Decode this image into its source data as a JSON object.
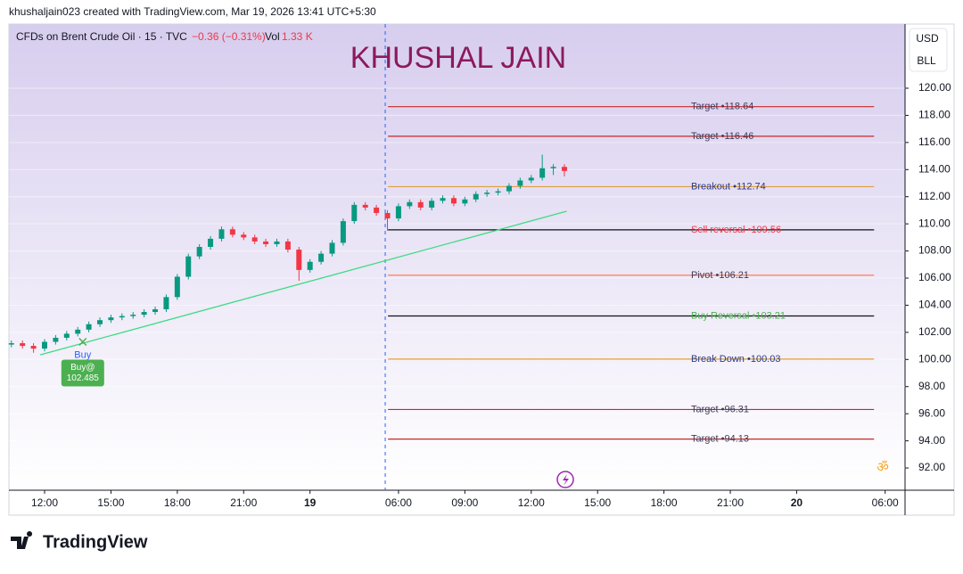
{
  "header": "khushaljain023 created with TradingView.com, Mar 19, 2026 13:41 UTC+5:30",
  "chart_data": {
    "type": "candlestick",
    "symbol": "CFDs on Brent Crude Oil · 15 · TVC",
    "change": "−0.36 (−0.31%)",
    "volume_label": "Vol",
    "volume": "1.33 K",
    "title": "KHUSHAL JAIN",
    "currency": "USD",
    "unit": "BLL",
    "up_color": "#089981",
    "down_color": "#f23645",
    "x": [
      -6,
      -4,
      -2,
      0,
      2,
      4,
      6,
      8,
      10,
      12,
      14,
      16,
      18,
      20,
      22,
      24,
      26,
      28,
      30,
      32,
      34,
      36,
      38,
      40,
      42,
      44,
      46,
      48,
      50,
      52,
      54,
      56,
      58,
      60,
      62,
      64,
      66,
      68,
      70,
      72,
      74,
      76,
      78,
      80,
      82,
      84,
      86,
      88,
      90,
      92,
      94
    ],
    "open": [
      101.1,
      101.2,
      101.0,
      100.8,
      101.3,
      101.6,
      101.9,
      102.2,
      102.6,
      102.9,
      103.1,
      103.2,
      103.3,
      103.5,
      103.7,
      104.6,
      106.1,
      107.6,
      108.3,
      108.9,
      109.6,
      109.2,
      109.0,
      108.7,
      108.5,
      108.7,
      108.1,
      106.6,
      107.2,
      107.8,
      108.6,
      110.2,
      111.4,
      111.2,
      110.8,
      110.4,
      111.3,
      111.6,
      111.2,
      111.7,
      111.9,
      111.5,
      111.8,
      112.2,
      112.3,
      112.4,
      112.8,
      113.2,
      113.4,
      114.1,
      114.2
    ],
    "high": [
      101.4,
      101.4,
      101.2,
      101.5,
      101.8,
      102.1,
      102.4,
      102.8,
      103.1,
      103.3,
      103.4,
      103.5,
      103.7,
      103.9,
      104.8,
      106.3,
      107.8,
      108.5,
      109.1,
      109.8,
      109.8,
      109.4,
      109.2,
      108.9,
      108.9,
      108.9,
      108.3,
      107.4,
      108.0,
      108.8,
      110.4,
      111.6,
      111.6,
      111.4,
      111.0,
      111.5,
      111.8,
      111.8,
      111.9,
      112.1,
      112.1,
      112.0,
      112.4,
      112.5,
      112.6,
      113.0,
      113.4,
      113.6,
      115.1,
      114.4,
      114.4
    ],
    "low": [
      100.9,
      100.8,
      100.5,
      100.6,
      101.1,
      101.4,
      101.7,
      102.0,
      102.4,
      102.7,
      102.9,
      103.0,
      103.1,
      103.3,
      103.5,
      104.4,
      105.9,
      107.4,
      108.1,
      108.7,
      109.0,
      108.8,
      108.5,
      108.3,
      108.3,
      107.9,
      105.8,
      106.4,
      107.0,
      107.6,
      108.4,
      110.0,
      111.0,
      110.6,
      109.5,
      110.2,
      111.1,
      111.0,
      111.0,
      111.5,
      111.3,
      111.3,
      111.6,
      112.0,
      112.1,
      112.2,
      112.6,
      113.0,
      113.2,
      113.6,
      113.5
    ],
    "close": [
      101.2,
      101.0,
      100.8,
      101.3,
      101.6,
      101.9,
      102.2,
      102.6,
      102.9,
      103.1,
      103.2,
      103.3,
      103.5,
      103.7,
      104.6,
      106.1,
      107.6,
      108.3,
      108.9,
      109.6,
      109.2,
      109.0,
      108.7,
      108.5,
      108.7,
      108.1,
      106.6,
      107.2,
      107.8,
      108.6,
      110.2,
      111.4,
      111.2,
      110.8,
      110.4,
      111.3,
      111.6,
      111.2,
      111.7,
      111.9,
      111.5,
      111.8,
      112.2,
      112.3,
      112.4,
      112.8,
      113.2,
      113.4,
      114.1,
      114.2,
      113.9
    ],
    "xlim": [
      -6.45,
      155.6
    ],
    "xticks": [
      {
        "value": 0,
        "label": "12:00"
      },
      {
        "value": 12,
        "label": "15:00"
      },
      {
        "value": 24,
        "label": "18:00"
      },
      {
        "value": 36,
        "label": "21:00"
      },
      {
        "value": 48,
        "label": "19"
      },
      {
        "value": 64,
        "label": "06:00"
      },
      {
        "value": 76,
        "label": "09:00"
      },
      {
        "value": 88,
        "label": "12:00"
      },
      {
        "value": 100,
        "label": "15:00"
      },
      {
        "value": 112,
        "label": "18:00"
      },
      {
        "value": 124,
        "label": "21:00"
      },
      {
        "value": 136,
        "label": "20"
      },
      {
        "value": 152,
        "label": "06:00"
      }
    ],
    "ylim": [
      90.36,
      124.73
    ],
    "yticks": [
      {
        "value": 92,
        "label": "92.00"
      },
      {
        "value": 94,
        "label": "94.00"
      },
      {
        "value": 96,
        "label": "96.00"
      },
      {
        "value": 98,
        "label": "98.00"
      },
      {
        "value": 100,
        "label": "100.00"
      },
      {
        "value": 102,
        "label": "102.00"
      },
      {
        "value": 104,
        "label": "104.00"
      },
      {
        "value": 106,
        "label": "106.00"
      },
      {
        "value": 108,
        "label": "108.00"
      },
      {
        "value": 110,
        "label": "110.00"
      },
      {
        "value": 112,
        "label": "112.00"
      },
      {
        "value": 114,
        "label": "114.00"
      },
      {
        "value": 116,
        "label": "116.00"
      },
      {
        "value": 118,
        "label": "118.00"
      },
      {
        "value": 120,
        "label": "120.00"
      }
    ],
    "session_break_x": 61.6,
    "levels_x": [
      62.1,
      150
    ],
    "levels": [
      {
        "name": "Target •",
        "value": 118.64,
        "color": "#c62828",
        "text_color": "#3d3d5c"
      },
      {
        "name": "Target •",
        "value": 116.46,
        "color": "#c62828",
        "text_color": "#3d3d5c"
      },
      {
        "name": "Breakout •",
        "value": 112.74,
        "color": "#e0a040",
        "text_color": "#2a3b8f"
      },
      {
        "name": "Sell reversal  •",
        "value": 109.56,
        "color": "#111111",
        "text_color": "#f23645"
      },
      {
        "name": "Pivot  •",
        "value": 106.21,
        "color": "#ff7043",
        "text_color": "#3d3d5c"
      },
      {
        "name": "Buy Reversal  •",
        "value": 103.21,
        "color": "#111111",
        "text_color": "#4caf50"
      },
      {
        "name": "Break Down •",
        "value": 100.03,
        "color": "#e0a030",
        "text_color": "#2a3b8f"
      },
      {
        "name": "Target •",
        "value": 96.31,
        "color": "#c62828",
        "text_color": "#3d3d5c"
      },
      {
        "name": "Target •",
        "value": 94.13,
        "color": "#c62828",
        "text_color": "#3d3d5c"
      }
    ],
    "trendline": {
      "color": "#3ddc84",
      "x": [
        -0.8,
        94.4
      ],
      "y": [
        100.34,
        110.93
      ]
    },
    "signal": {
      "x": 6.9,
      "y": 101.3,
      "text": "Buy",
      "label": "Buy@",
      "price": "102.485",
      "color": "#4caf50"
    }
  },
  "footer": "TradingView"
}
